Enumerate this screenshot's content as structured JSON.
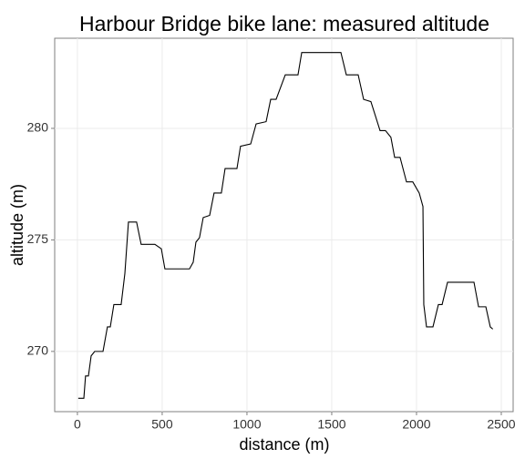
{
  "chart_data": {
    "type": "line",
    "title": "Harbour Bridge bike lane: measured altitude",
    "x_label": "distance (m)",
    "y_label": "altitude (m)",
    "color": "#000000",
    "grid": true,
    "xlim": [
      -134,
      2570
    ],
    "ylim": [
      267.3,
      284.04
    ],
    "xticks": [
      0,
      500,
      1000,
      1500,
      2000,
      2500
    ],
    "yticks": [
      270,
      275,
      280
    ],
    "x": [
      5,
      38,
      48,
      65,
      81,
      102,
      151,
      177,
      194,
      215,
      258,
      280,
      301,
      349,
      376,
      457,
      495,
      516,
      661,
      683,
      699,
      720,
      742,
      780,
      806,
      849,
      871,
      941,
      962,
      1022,
      1054,
      1113,
      1140,
      1172,
      1226,
      1301,
      1323,
      1554,
      1586,
      1656,
      1688,
      1731,
      1785,
      1817,
      1849,
      1871,
      1903,
      1941,
      1978,
      2016,
      2038,
      2043,
      2059,
      2097,
      2129,
      2151,
      2183,
      2339,
      2366,
      2409,
      2435,
      2450
    ],
    "values": [
      267.9,
      267.9,
      268.9,
      268.9,
      269.8,
      270,
      270,
      271.1,
      271.1,
      272.1,
      272.1,
      273.5,
      275.8,
      275.8,
      274.8,
      274.8,
      274.6,
      273.7,
      273.7,
      274,
      274.9,
      275.1,
      276,
      276.1,
      277.1,
      277.1,
      278.2,
      278.2,
      279.2,
      279.3,
      280.2,
      280.3,
      281.3,
      281.3,
      282.4,
      282.4,
      283.4,
      283.4,
      282.4,
      282.4,
      281.3,
      281.2,
      279.9,
      279.9,
      279.6,
      278.7,
      278.7,
      277.6,
      277.6,
      277.1,
      276.5,
      272.1,
      271.1,
      271.1,
      272.1,
      272.1,
      273.1,
      273.1,
      272,
      272,
      271.1,
      271
    ]
  }
}
